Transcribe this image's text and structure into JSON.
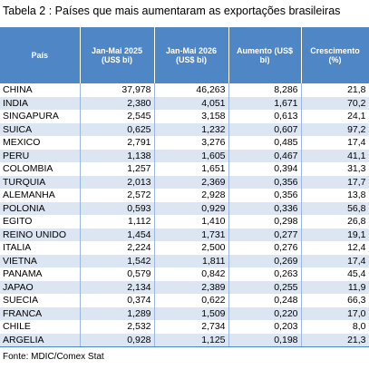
{
  "title": "Tabela 2 : Países que mais aumentaram as exportações brasileiras",
  "table": {
    "header": [
      "País",
      "Jan-Mai 2025 (US$ bi)",
      "Jan-Mai 2026 (US$ bi)",
      "Aumento (US$ bi)",
      "Crescimento (%)"
    ],
    "rows": [
      [
        "CHINA",
        "37,978",
        "46,263",
        "8,286",
        "21,8"
      ],
      [
        "INDIA",
        "2,380",
        "4,051",
        "1,671",
        "70,2"
      ],
      [
        "SINGAPURA",
        "2,545",
        "3,158",
        "0,613",
        "24,1"
      ],
      [
        "SUICA",
        "0,625",
        "1,232",
        "0,607",
        "97,2"
      ],
      [
        "MEXICO",
        "2,791",
        "3,276",
        "0,485",
        "17,4"
      ],
      [
        "PERU",
        "1,138",
        "1,605",
        "0,467",
        "41,1"
      ],
      [
        "COLOMBIA",
        "1,257",
        "1,651",
        "0,394",
        "31,3"
      ],
      [
        "TURQUIA",
        "2,013",
        "2,369",
        "0,356",
        "17,7"
      ],
      [
        "ALEMANHA",
        "2,572",
        "2,928",
        "0,356",
        "13,8"
      ],
      [
        "POLONIA",
        "0,593",
        "0,929",
        "0,336",
        "56,8"
      ],
      [
        "EGITO",
        "1,112",
        "1,410",
        "0,298",
        "26,8"
      ],
      [
        "REINO UNIDO",
        "1,454",
        "1,731",
        "0,277",
        "19,1"
      ],
      [
        "ITALIA",
        "2,224",
        "2,500",
        "0,276",
        "12,4"
      ],
      [
        "VIETNA",
        "1,542",
        "1,811",
        "0,269",
        "17,4"
      ],
      [
        "PANAMA",
        "0,579",
        "0,842",
        "0,263",
        "45,4"
      ],
      [
        "JAPAO",
        "2,134",
        "2,389",
        "0,255",
        "11,9"
      ],
      [
        "SUECIA",
        "0,374",
        "0,622",
        "0,248",
        "66,3"
      ],
      [
        "FRANCA",
        "1,289",
        "1,509",
        "0,220",
        "17,0"
      ],
      [
        "CHILE",
        "2,532",
        "2,734",
        "0,203",
        "8,0"
      ],
      [
        "ARGELIA",
        "0,928",
        "1,125",
        "0,198",
        "21,3"
      ]
    ]
  },
  "source": "Fonte: MDIC/Comex Stat"
}
